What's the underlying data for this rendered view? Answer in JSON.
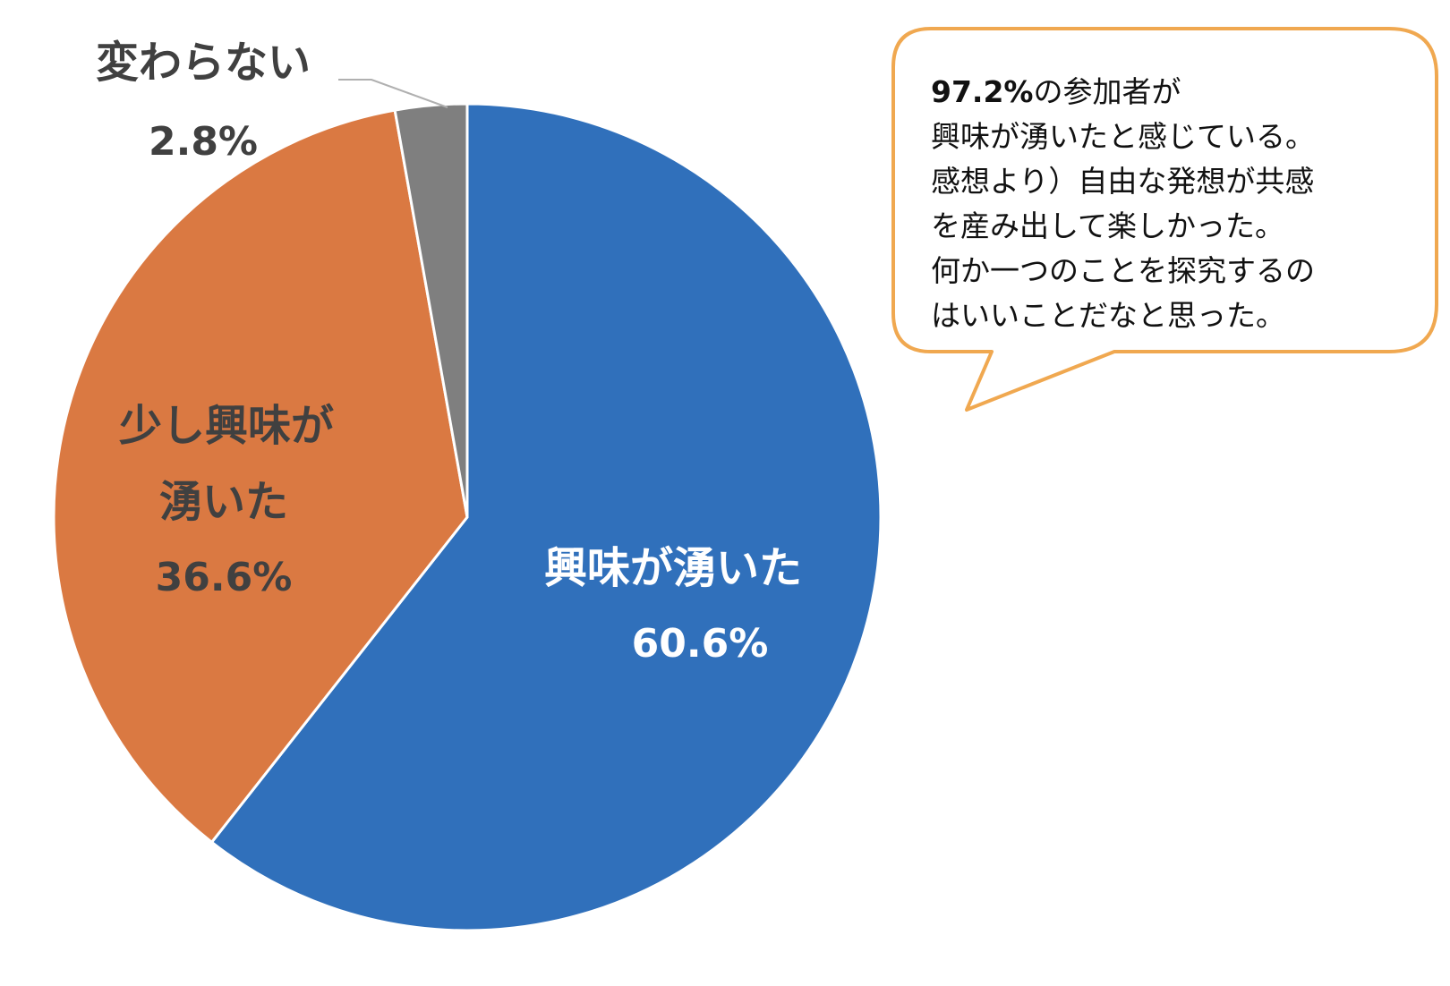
{
  "chart_data": {
    "type": "pie",
    "title": "",
    "start_angle_deg": 0,
    "direction": "clockwise",
    "slices": [
      {
        "label": "興味が湧いた",
        "percent_label": "60.6%",
        "value": 60.6,
        "color": "#3070BB",
        "label_color": "#ffffff"
      },
      {
        "label": "少し興味が湧いた",
        "label_lines": [
          "少し興味が",
          "湧いた"
        ],
        "percent_label": "36.6%",
        "value": 36.6,
        "color": "#DA7942",
        "label_color": "#404040"
      },
      {
        "label": "変わらない",
        "percent_label": "2.8%",
        "value": 2.8,
        "color": "#7F7F7F",
        "label_color": "#404040"
      }
    ]
  },
  "callout": {
    "headline": "97.2%",
    "headline_suffix": "の参加者が",
    "body": "興味が湧いたと感じている。\n感想より）自由な発想が共感\nを産み出して楽しかった。\n何か一つのことを探究するの\nはいいことだなと思った。",
    "border_color": "#F0A850"
  }
}
